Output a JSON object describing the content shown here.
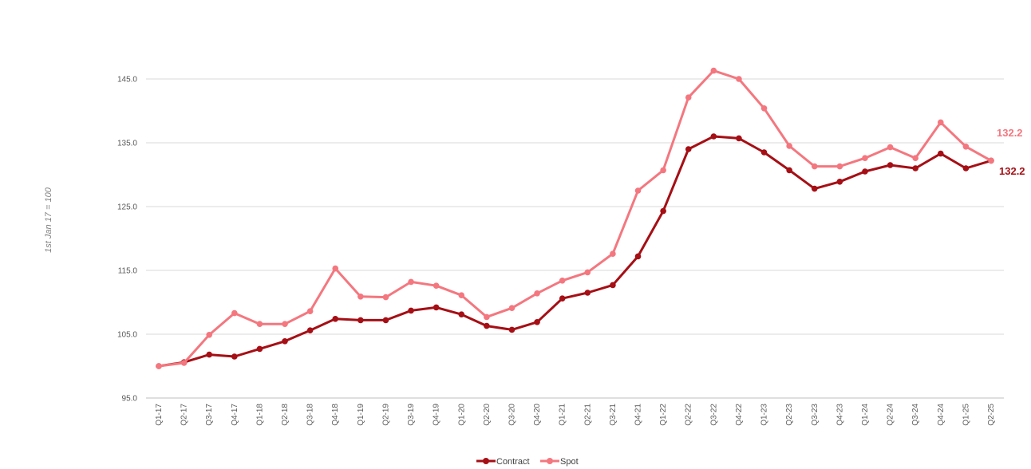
{
  "chart_data": {
    "type": "line",
    "ylabel": "1st Jan 17 = 100",
    "ylim": [
      95,
      150
    ],
    "yticks": [
      "95.0",
      "105.0",
      "115.0",
      "125.0",
      "135.0",
      "145.0"
    ],
    "categories": [
      "Q1-17",
      "Q2-17",
      "Q3-17",
      "Q4-17",
      "Q1-18",
      "Q2-18",
      "Q3-18",
      "Q4-18",
      "Q1-19",
      "Q2-19",
      "Q3-19",
      "Q4-19",
      "Q1-20",
      "Q2-20",
      "Q3-20",
      "Q4-20",
      "Q1-21",
      "Q2-21",
      "Q3-21",
      "Q4-21",
      "Q1-22",
      "Q2-22",
      "Q3-22",
      "Q4-22",
      "Q1-23",
      "Q2-23",
      "Q3-23",
      "Q4-23",
      "Q1-24",
      "Q2-24",
      "Q3-24",
      "Q4-24",
      "Q1-25",
      "Q2-25"
    ],
    "series": [
      {
        "name": "Contract",
        "color": "#a50f15",
        "end_label": "132.2",
        "values": [
          100.0,
          100.6,
          101.8,
          101.5,
          102.7,
          103.9,
          105.6,
          107.4,
          107.2,
          107.2,
          108.7,
          109.2,
          108.1,
          106.3,
          105.7,
          106.9,
          110.6,
          111.5,
          112.7,
          117.2,
          124.3,
          134.0,
          136.0,
          135.7,
          133.5,
          130.7,
          127.8,
          128.9,
          130.5,
          131.5,
          131.0,
          133.3,
          131.0,
          132.2
        ]
      },
      {
        "name": "Spot",
        "color": "#f4777f",
        "end_label": "132.2",
        "values": [
          100.0,
          100.5,
          104.9,
          108.3,
          106.6,
          106.6,
          108.6,
          115.3,
          110.9,
          110.8,
          113.2,
          112.6,
          111.1,
          107.7,
          109.1,
          111.4,
          113.4,
          114.7,
          117.6,
          127.5,
          130.7,
          142.1,
          146.3,
          145.0,
          140.4,
          134.5,
          131.3,
          131.3,
          132.6,
          134.3,
          132.6,
          138.2,
          134.4,
          132.2
        ]
      }
    ],
    "grid": true,
    "legend": "bottom-center"
  }
}
